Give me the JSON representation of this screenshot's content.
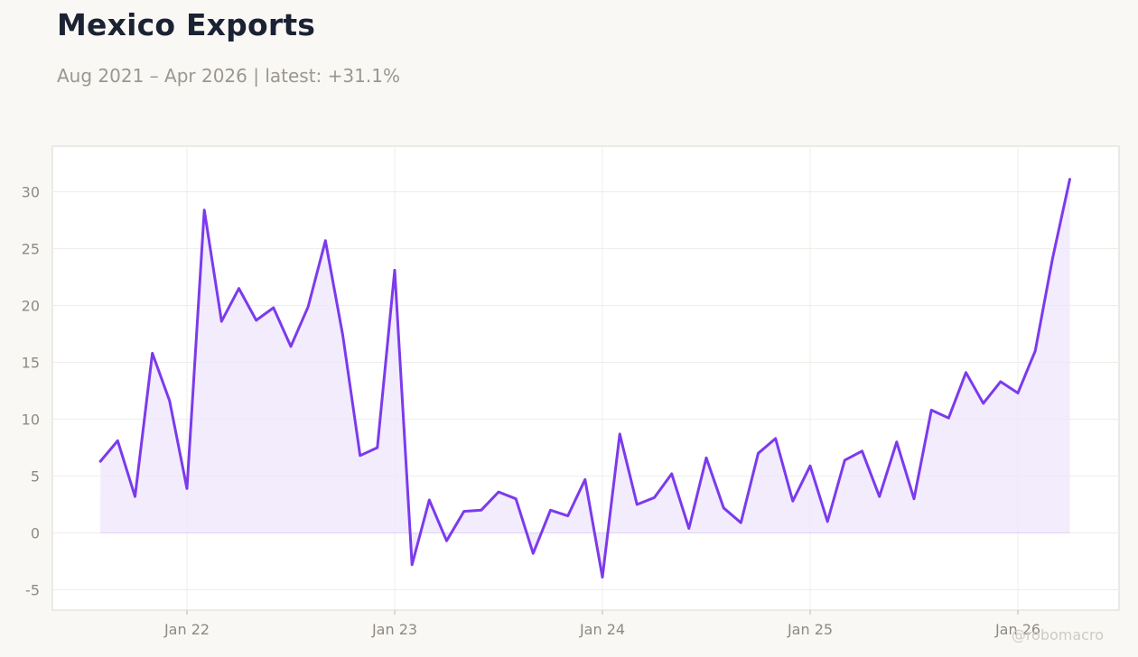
{
  "header": {
    "title": "Mexico Exports",
    "subtitle": "Aug 2021 – Apr 2026 | latest: +31.1%"
  },
  "watermark": "@robomacro",
  "colors": {
    "line": "#7c3aed",
    "fill": "#ede6fb",
    "background": "#f9f8f5",
    "plot_background": "#ffffff"
  },
  "chart_data": {
    "type": "area",
    "x_start": "2021-08",
    "x_end": "2026-04",
    "frequency": "monthly",
    "ylim": [
      -7,
      34
    ],
    "yticks": [
      -5,
      0,
      5,
      10,
      15,
      20,
      25,
      30
    ],
    "ytick_labels": [
      "-5",
      "0",
      "5",
      "10",
      "15",
      "20",
      "25",
      "30"
    ],
    "xticks": [
      "2022-01",
      "2023-01",
      "2024-01",
      "2025-01",
      "2026-01"
    ],
    "xtick_labels": [
      "Jan 22",
      "Jan 23",
      "Jan 24",
      "Jan 25",
      "Jan 26"
    ],
    "grid": true,
    "legend": false,
    "series": [
      {
        "values": [
          6.3,
          8.1,
          3.2,
          15.8,
          11.6,
          3.9,
          28.4,
          18.6,
          21.5,
          18.7,
          19.8,
          16.4,
          19.9,
          25.7,
          17.4,
          6.8,
          7.5,
          23.1,
          -2.8,
          2.9,
          -0.7,
          1.9,
          2.0,
          3.6,
          3.0,
          -1.8,
          2.0,
          1.5,
          4.7,
          -3.9,
          8.7,
          2.5,
          3.1,
          5.2,
          0.4,
          6.6,
          2.2,
          0.9,
          7.0,
          8.3,
          2.8,
          5.9,
          1.0,
          6.4,
          7.2,
          3.2,
          8.0,
          3.0,
          10.8,
          10.1,
          14.1,
          11.4,
          13.3,
          12.3,
          16.0,
          24.1,
          31.1
        ]
      }
    ]
  }
}
